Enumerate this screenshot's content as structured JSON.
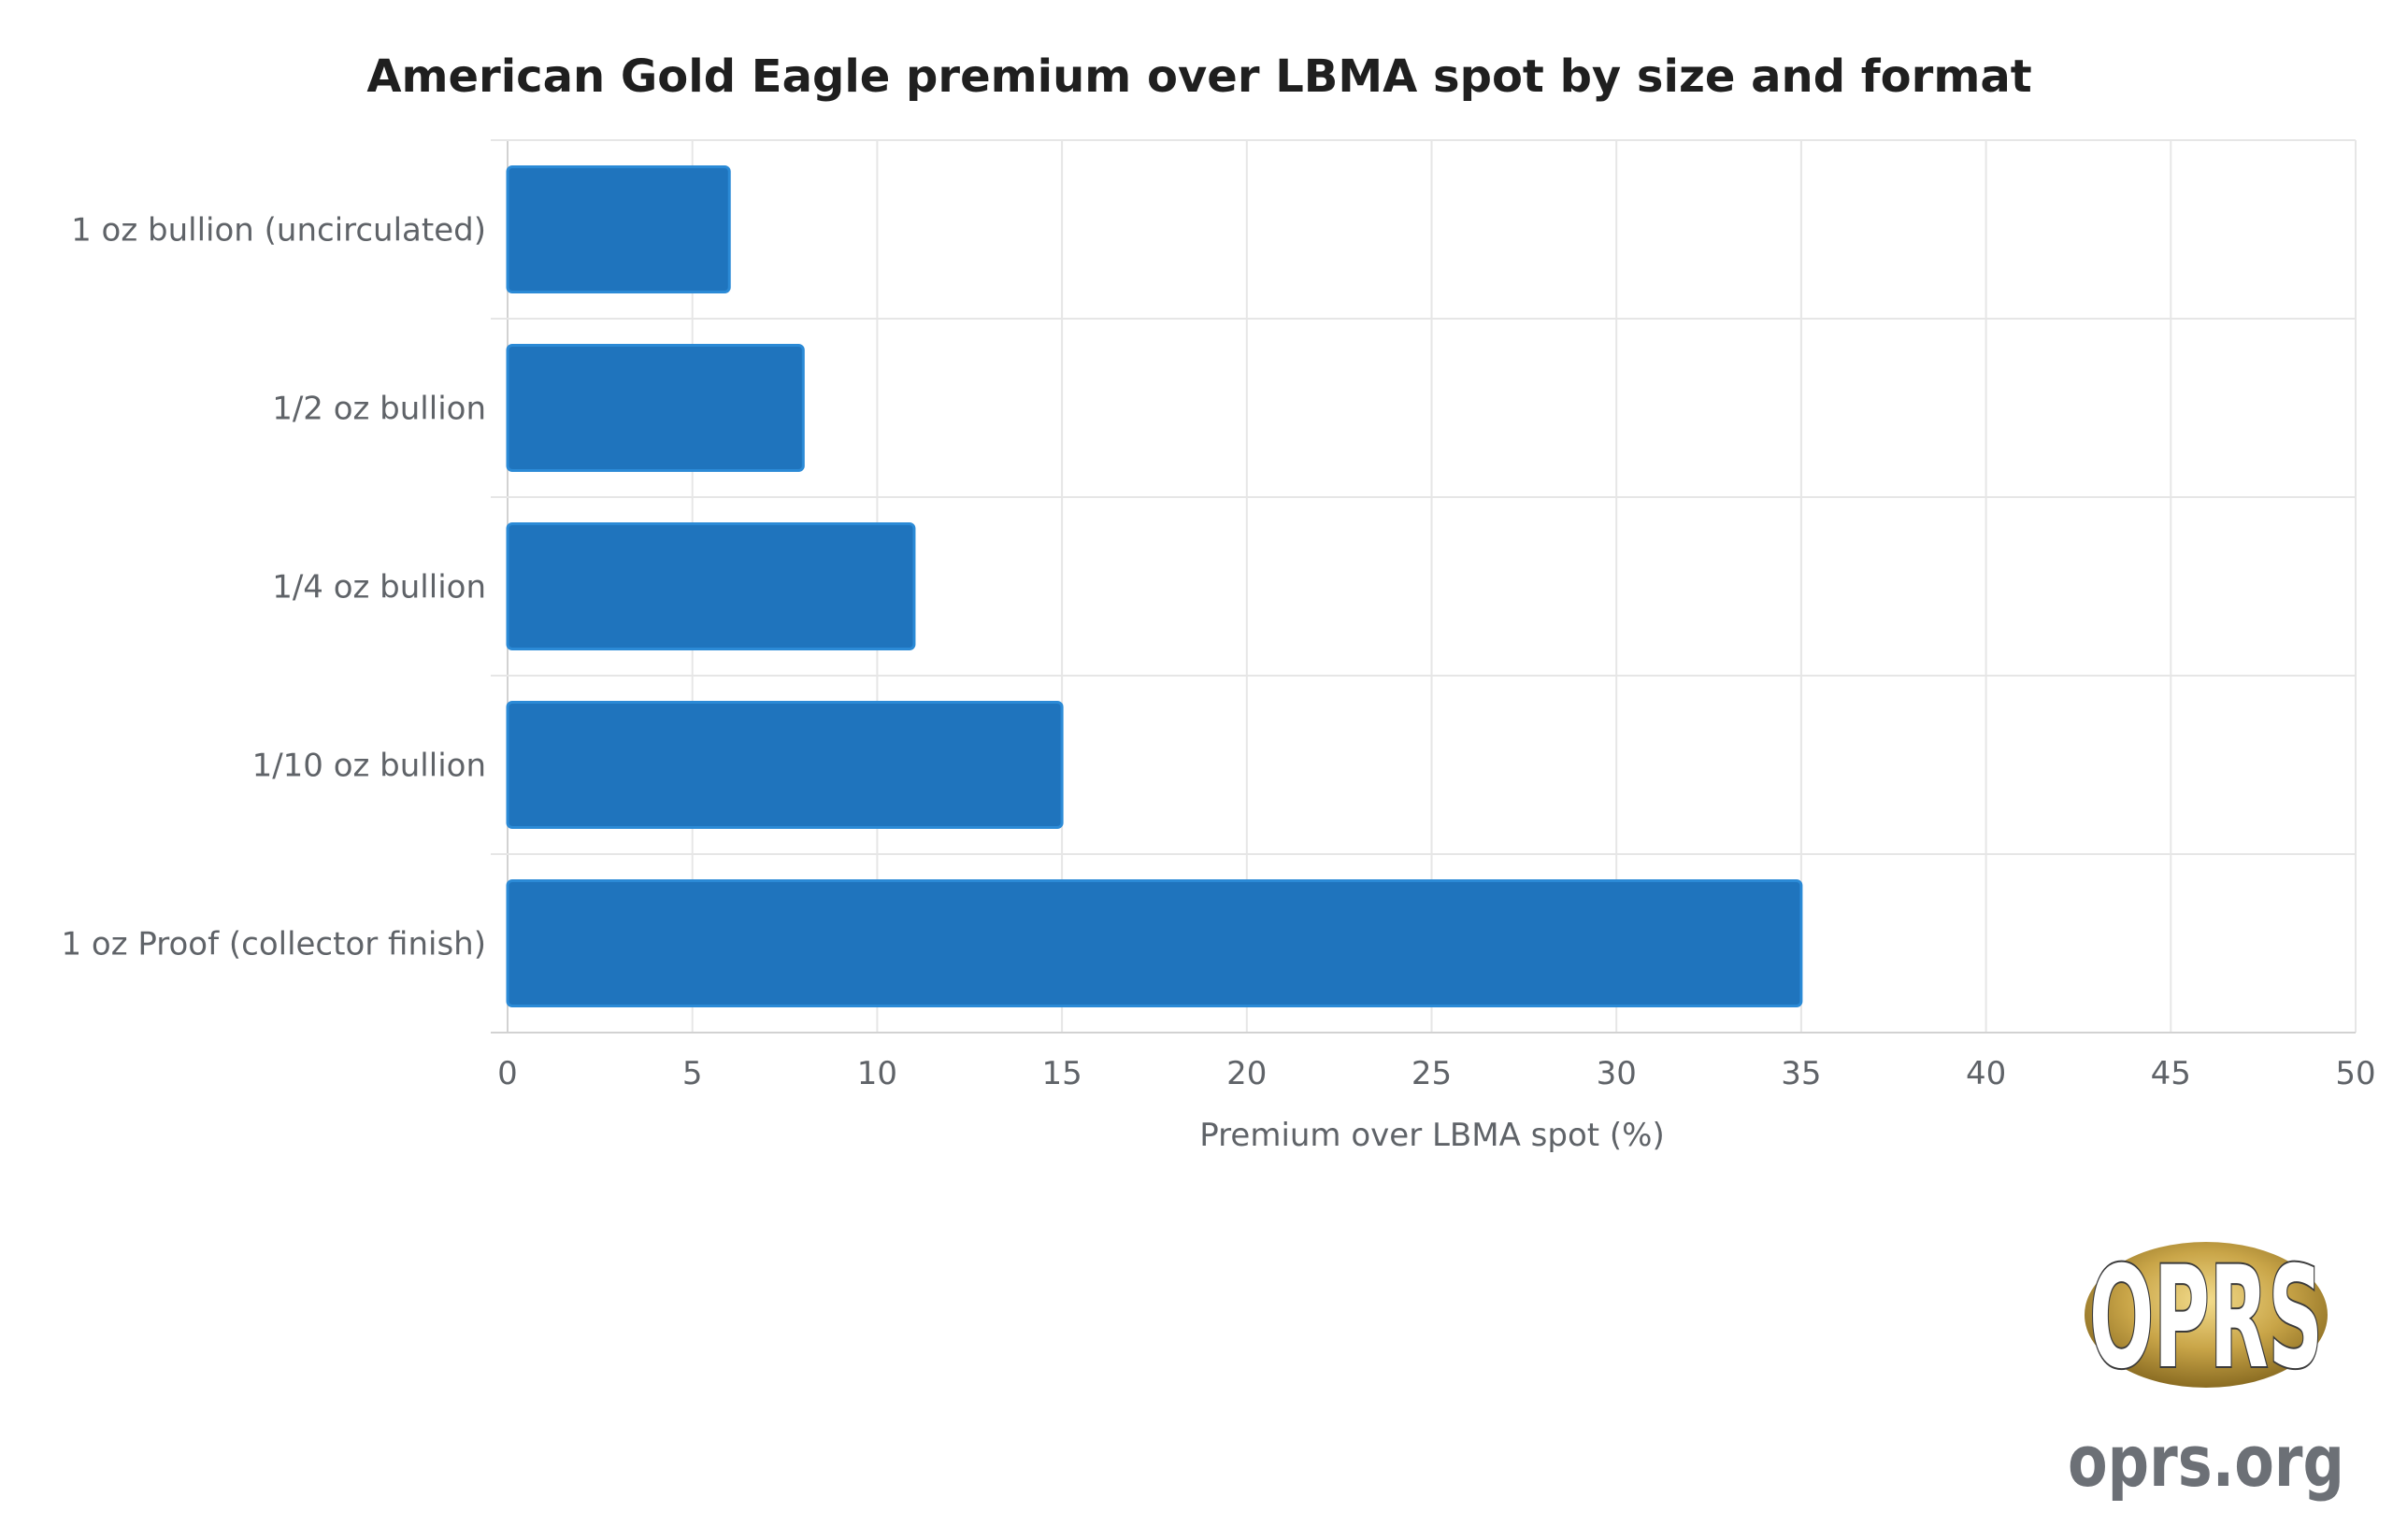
{
  "chart_data": {
    "type": "bar",
    "orientation": "horizontal",
    "title": "American Gold Eagle premium over LBMA spot by size and format",
    "xlabel": "Premium over LBMA spot (%)",
    "ylabel": "",
    "categories": [
      "1 oz bullion (uncirculated)",
      "1/2 oz bullion",
      "1/4 oz bullion",
      "1/10 oz bullion",
      "1 oz Proof (collector finish)"
    ],
    "values": [
      6,
      8,
      11,
      15,
      35
    ],
    "xlim": [
      0,
      50
    ],
    "xticks": [
      0,
      5,
      10,
      15,
      20,
      25,
      30,
      35,
      40,
      45,
      50
    ],
    "grid": true,
    "legend": "none",
    "bar_color": "#1f74bd",
    "bar_edge_color": "#2b8ad6"
  },
  "logo": {
    "text": "OPRS",
    "site": "oprs.org",
    "gold": "#c9a548"
  }
}
